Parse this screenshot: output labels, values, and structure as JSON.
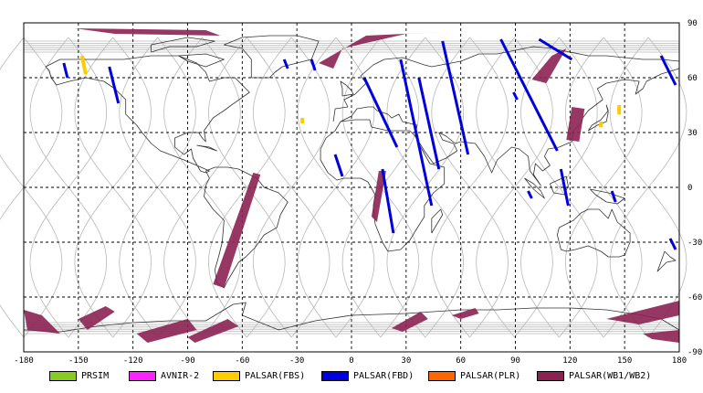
{
  "map": {
    "lon_range": [
      -180,
      180
    ],
    "lat_range": [
      -90,
      90
    ],
    "x_ticks": [
      -180,
      -150,
      -120,
      -90,
      -60,
      -30,
      0,
      30,
      60,
      90,
      120,
      150,
      180
    ],
    "y_ticks": [
      90,
      60,
      30,
      0,
      -30,
      -60,
      -90
    ],
    "colors": {
      "PRSIM": "#88cc22",
      "AVNIR-2": "#ff22ff",
      "PALSAR(FBS)": "#ffcc00",
      "PALSAR(FBD)": "#0000dd",
      "PALSAR(PLR)": "#ff6600",
      "PALSAR(WB1/WB2)": "#8b2252"
    }
  },
  "legend": [
    {
      "label": "PRSIM",
      "color": "#88cc22"
    },
    {
      "label": "AVNIR-2",
      "color": "#ff22ff"
    },
    {
      "label": "PALSAR(FBS)",
      "color": "#ffcc00"
    },
    {
      "label": "PALSAR(FBD)",
      "color": "#0000dd"
    },
    {
      "label": "PALSAR(PLR)",
      "color": "#ff6600"
    },
    {
      "label": "PALSAR(WB1/WB2)",
      "color": "#8b2252"
    }
  ],
  "chart_data": {
    "type": "map",
    "fbs_swaths": [
      {
        "lon": [
          -148,
          -146
        ],
        "lat": [
          72,
          62
        ]
      },
      {
        "lon": [
          -27,
          -27
        ],
        "lat": [
          38,
          35
        ]
      },
      {
        "lon": [
          147,
          147
        ],
        "lat": [
          45,
          40
        ]
      },
      {
        "lon": [
          137,
          137
        ],
        "lat": [
          36,
          33
        ]
      }
    ],
    "fbd_swaths": [
      {
        "lon": [
          -158,
          -156
        ],
        "lat": [
          68,
          60
        ]
      },
      {
        "lon": [
          -133,
          -128
        ],
        "lat": [
          66,
          46
        ]
      },
      {
        "lon": [
          -37,
          -35
        ],
        "lat": [
          70,
          65
        ]
      },
      {
        "lon": [
          -22,
          -20
        ],
        "lat": [
          70,
          64
        ]
      },
      {
        "lon": [
          7,
          25
        ],
        "lat": [
          60,
          22
        ]
      },
      {
        "lon": [
          27,
          44
        ],
        "lat": [
          70,
          -10
        ]
      },
      {
        "lon": [
          50,
          64
        ],
        "lat": [
          80,
          18
        ]
      },
      {
        "lon": [
          37,
          48
        ],
        "lat": [
          60,
          10
        ]
      },
      {
        "lon": [
          -9,
          -5
        ],
        "lat": [
          18,
          6
        ]
      },
      {
        "lon": [
          17,
          23
        ],
        "lat": [
          10,
          -25
        ]
      },
      {
        "lon": [
          82,
          113
        ],
        "lat": [
          81,
          20
        ]
      },
      {
        "lon": [
          103,
          121
        ],
        "lat": [
          81,
          70
        ]
      },
      {
        "lon": [
          115,
          119
        ],
        "lat": [
          10,
          -10
        ]
      },
      {
        "lon": [
          143,
          145
        ],
        "lat": [
          -2,
          -8
        ]
      },
      {
        "lon": [
          170,
          178
        ],
        "lat": [
          72,
          56
        ]
      },
      {
        "lon": [
          175,
          178
        ],
        "lat": [
          -28,
          -34
        ]
      },
      {
        "lon": [
          89,
          91
        ],
        "lat": [
          52,
          48
        ]
      },
      {
        "lon": [
          97,
          99
        ],
        "lat": [
          -2,
          -6
        ]
      }
    ],
    "wb_swaths": [
      {
        "poly": [
          [
            -152,
            87
          ],
          [
            -80,
            86
          ],
          [
            -72,
            83
          ],
          [
            -130,
            84
          ]
        ]
      },
      {
        "poly": [
          [
            -5,
            76
          ],
          [
            30,
            84
          ],
          [
            50,
            85
          ],
          [
            8,
            83
          ],
          [
            -18,
            68
          ],
          [
            -10,
            65
          ]
        ]
      },
      {
        "poly": [
          [
            110,
            72
          ],
          [
            118,
            76
          ],
          [
            107,
            57
          ],
          [
            99,
            59
          ]
        ]
      },
      {
        "poly": [
          [
            121,
            44
          ],
          [
            128,
            43
          ],
          [
            125,
            25
          ],
          [
            118,
            26
          ]
        ]
      },
      {
        "poly": [
          [
            -54,
            8
          ],
          [
            -50,
            7
          ],
          [
            -70,
            -55
          ],
          [
            -76,
            -53
          ]
        ]
      },
      {
        "poly": [
          [
            15,
            9
          ],
          [
            19,
            9
          ],
          [
            14,
            -19
          ],
          [
            11,
            -16
          ]
        ]
      },
      {
        "poly": [
          [
            -180,
            -67
          ],
          [
            -170,
            -70
          ],
          [
            -160,
            -80
          ],
          [
            -178,
            -78
          ]
        ]
      },
      {
        "poly": [
          [
            -150,
            -72
          ],
          [
            -135,
            -65
          ],
          [
            -130,
            -68
          ],
          [
            -145,
            -78
          ]
        ]
      },
      {
        "poly": [
          [
            -118,
            -80
          ],
          [
            -90,
            -72
          ],
          [
            -85,
            -78
          ],
          [
            -112,
            -85
          ]
        ]
      },
      {
        "poly": [
          [
            -90,
            -82
          ],
          [
            -68,
            -72
          ],
          [
            -62,
            -76
          ],
          [
            -86,
            -85
          ]
        ]
      },
      {
        "poly": [
          [
            22,
            -77
          ],
          [
            38,
            -68
          ],
          [
            42,
            -72
          ],
          [
            28,
            -79
          ]
        ]
      },
      {
        "poly": [
          [
            55,
            -70
          ],
          [
            68,
            -66
          ],
          [
            70,
            -69
          ],
          [
            60,
            -72
          ]
        ]
      },
      {
        "poly": [
          [
            140,
            -72
          ],
          [
            180,
            -62
          ],
          [
            180,
            -70
          ],
          [
            158,
            -75
          ]
        ]
      },
      {
        "poly": [
          [
            160,
            -80
          ],
          [
            180,
            -78
          ],
          [
            180,
            -85
          ],
          [
            165,
            -83
          ]
        ]
      }
    ]
  }
}
